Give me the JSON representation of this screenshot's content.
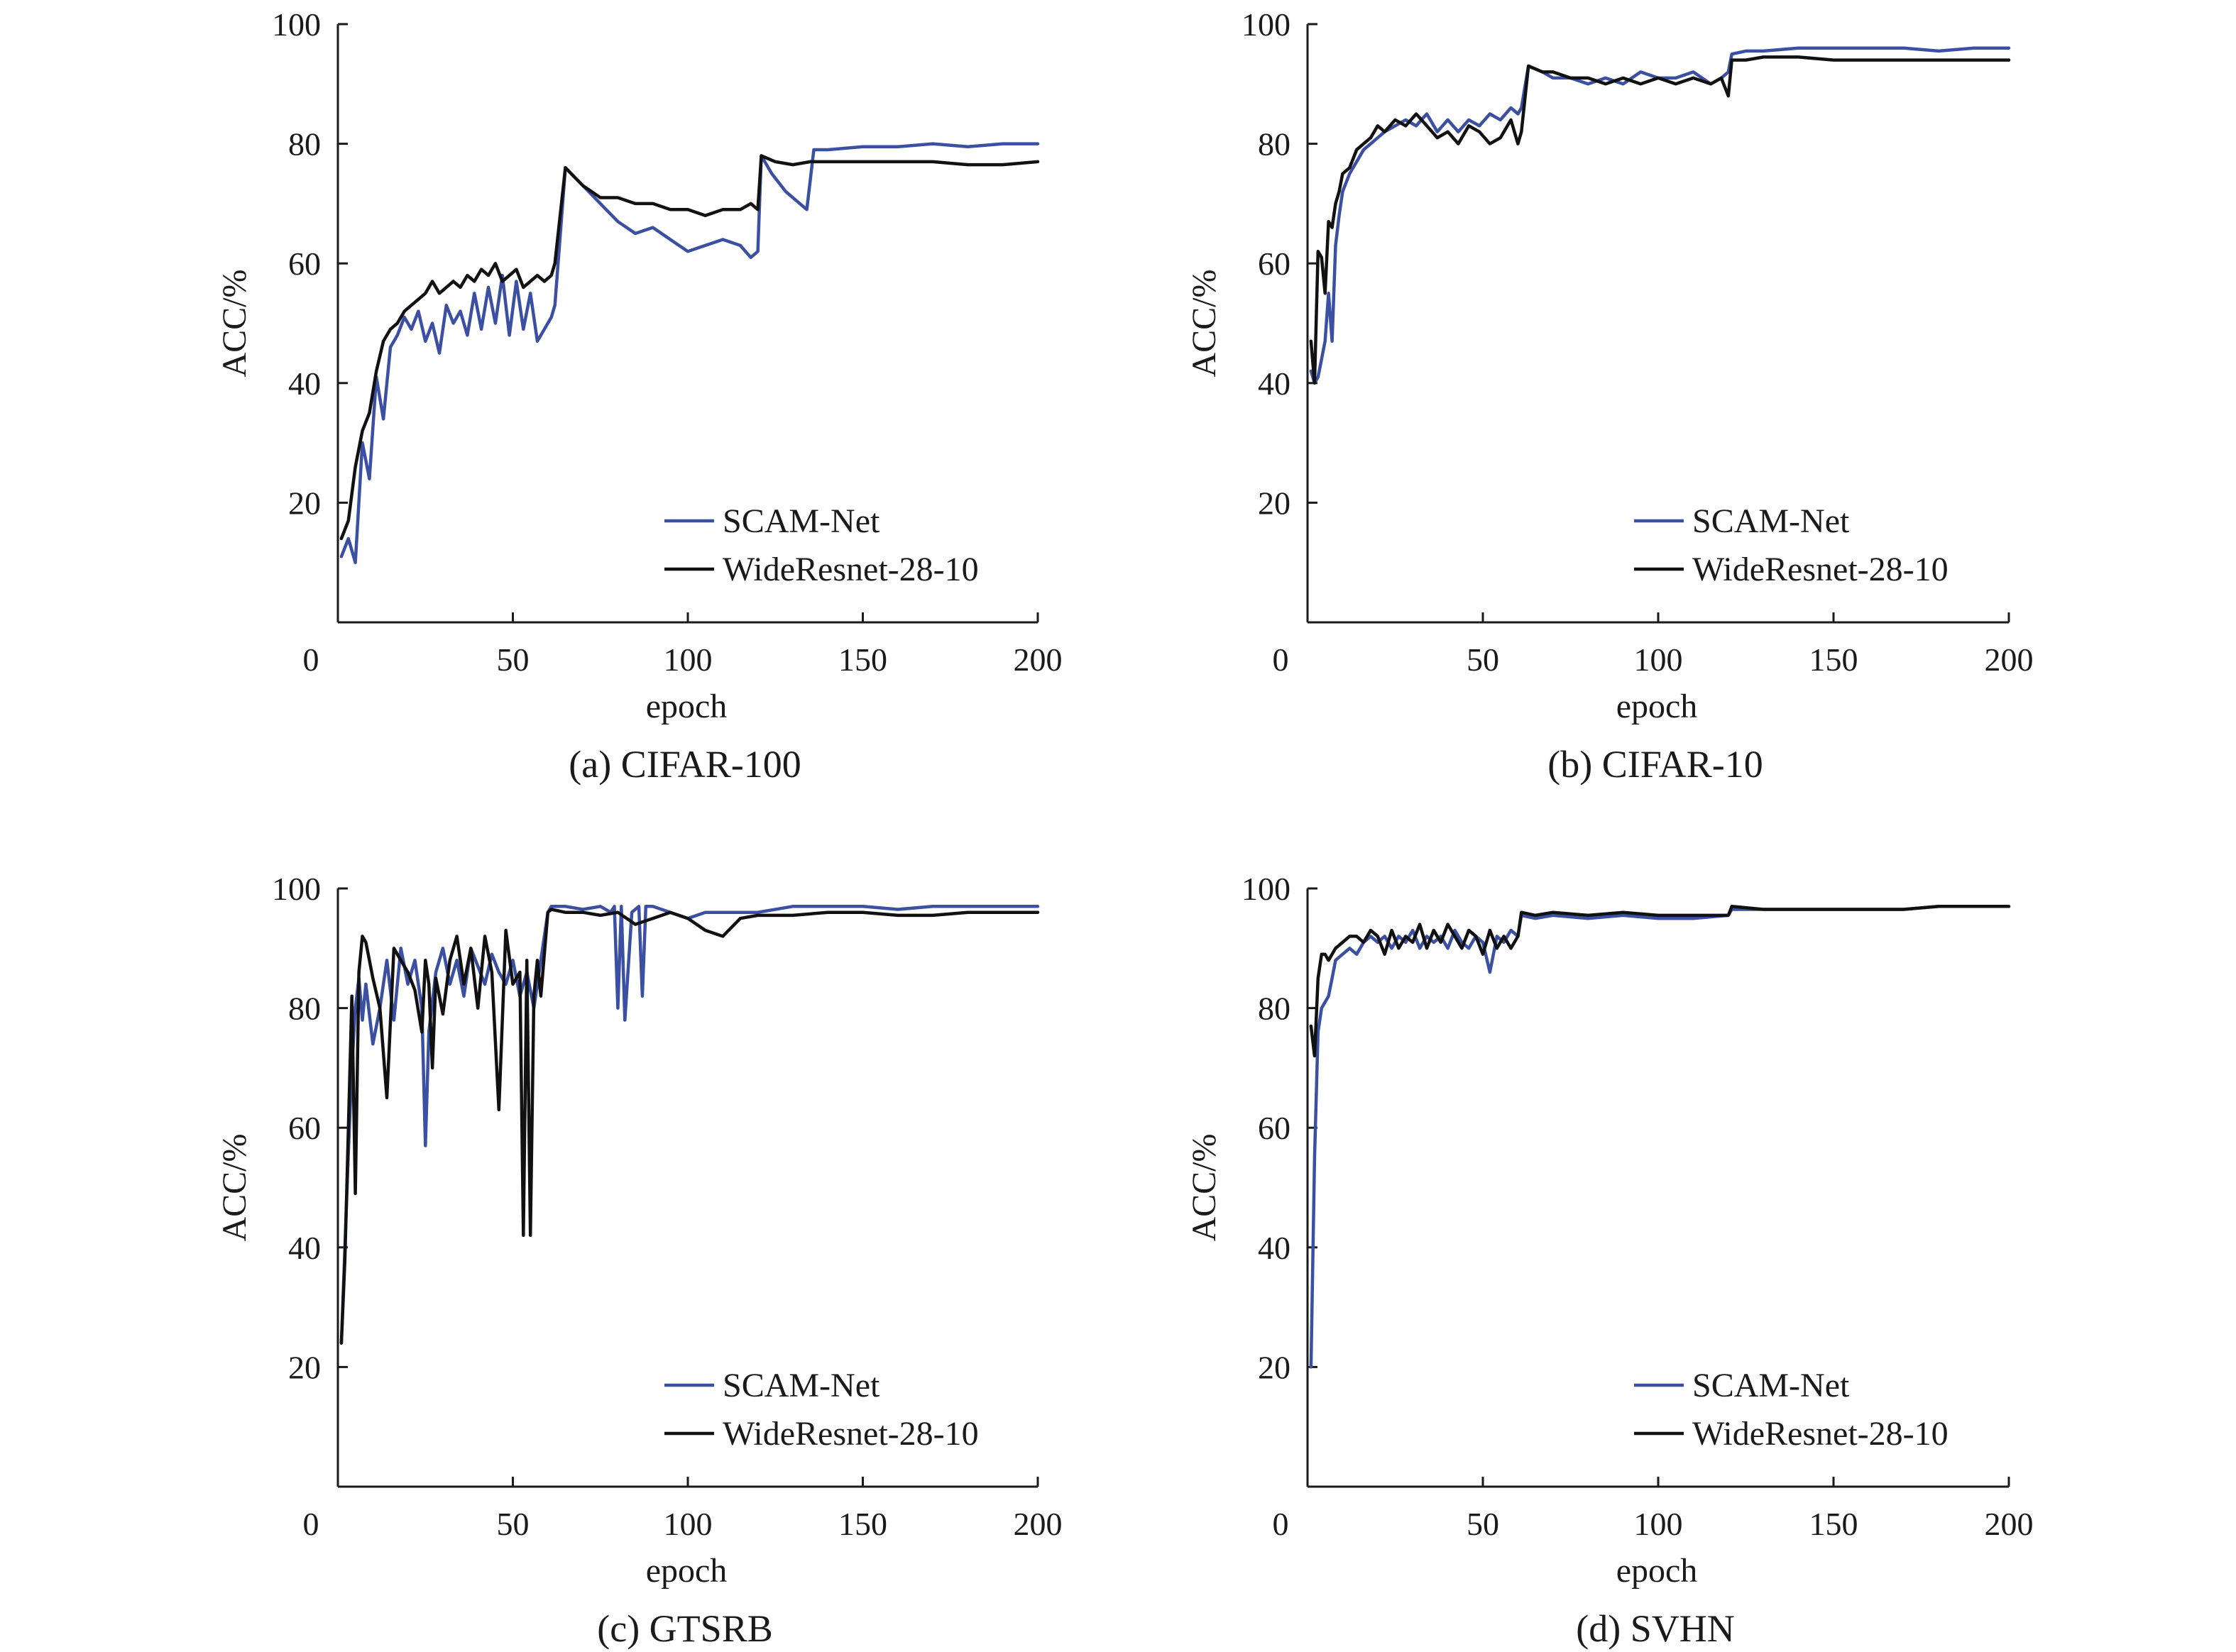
{
  "colors": {
    "scam": "#3b4fa3",
    "wide": "#111111",
    "axis": "#1a1a1a"
  },
  "chart_data": [
    {
      "type": "line",
      "title": "(a) CIFAR-100",
      "xlabel": "epoch",
      "ylabel": "ACC/%",
      "xlim": [
        0,
        200
      ],
      "ylim": [
        0,
        100
      ],
      "xticks": [
        "0",
        "50",
        "100",
        "150",
        "200"
      ],
      "yticks": [
        "20",
        "40",
        "60",
        "80",
        "100"
      ],
      "legend": "lower-right",
      "series": [
        {
          "name": "SCAM-Net",
          "x": [
            1,
            3,
            5,
            7,
            9,
            11,
            13,
            15,
            17,
            19,
            21,
            23,
            25,
            27,
            29,
            31,
            33,
            35,
            37,
            39,
            41,
            43,
            45,
            47,
            49,
            51,
            53,
            55,
            57,
            59,
            61,
            62,
            65,
            70,
            75,
            80,
            85,
            90,
            95,
            100,
            105,
            110,
            115,
            118,
            120,
            121,
            124,
            128,
            132,
            134,
            136,
            140,
            150,
            160,
            170,
            180,
            190,
            200
          ],
          "y": [
            11,
            14,
            10,
            30,
            24,
            41,
            34,
            46,
            48,
            51,
            49,
            52,
            47,
            50,
            45,
            53,
            50,
            52,
            48,
            55,
            49,
            56,
            50,
            58,
            48,
            57,
            49,
            55,
            47,
            49,
            51,
            53,
            76,
            73,
            70,
            67,
            65,
            66,
            64,
            62,
            63,
            64,
            63,
            61,
            62,
            78,
            75,
            72,
            70,
            69,
            79,
            79,
            79.5,
            79.5,
            80,
            79.5,
            80,
            80
          ]
        },
        {
          "name": "WideResnet-28-10",
          "x": [
            1,
            3,
            5,
            7,
            9,
            11,
            13,
            15,
            17,
            19,
            21,
            23,
            25,
            27,
            29,
            31,
            33,
            35,
            37,
            39,
            41,
            43,
            45,
            47,
            49,
            51,
            53,
            55,
            57,
            59,
            61,
            62,
            65,
            70,
            75,
            80,
            85,
            90,
            95,
            100,
            105,
            110,
            115,
            118,
            120,
            121,
            125,
            130,
            135,
            140,
            150,
            160,
            170,
            180,
            190,
            200
          ],
          "y": [
            14,
            17,
            26,
            32,
            35,
            42,
            47,
            49,
            50,
            52,
            53,
            54,
            55,
            57,
            55,
            56,
            57,
            56,
            58,
            57,
            59,
            58,
            60,
            57,
            58,
            59,
            56,
            57,
            58,
            57,
            58,
            60,
            76,
            73,
            71,
            71,
            70,
            70,
            69,
            69,
            68,
            69,
            69,
            70,
            69,
            78,
            77,
            76.5,
            77,
            77,
            77,
            77,
            77,
            76.5,
            76.5,
            77
          ]
        }
      ]
    },
    {
      "type": "line",
      "title": "(b) CIFAR-10",
      "xlabel": "epoch",
      "ylabel": "ACC/%",
      "xlim": [
        0,
        200
      ],
      "ylim": [
        0,
        100
      ],
      "xticks": [
        "0",
        "50",
        "100",
        "150",
        "200"
      ],
      "yticks": [
        "20",
        "40",
        "60",
        "80",
        "100"
      ],
      "legend": "lower-right",
      "series": [
        {
          "name": "SCAM-Net",
          "x": [
            1,
            2,
            3,
            4,
            5,
            6,
            7,
            8,
            9,
            10,
            12,
            14,
            16,
            18,
            20,
            22,
            25,
            28,
            31,
            34,
            37,
            40,
            43,
            46,
            49,
            52,
            55,
            58,
            60,
            61,
            63,
            67,
            70,
            75,
            80,
            85,
            90,
            95,
            100,
            105,
            110,
            115,
            118,
            120,
            121,
            125,
            130,
            140,
            150,
            160,
            170,
            180,
            190,
            200
          ],
          "y": [
            42,
            40,
            41,
            44,
            47,
            55,
            47,
            63,
            68,
            72,
            75,
            77,
            79,
            80,
            81,
            82,
            83,
            84,
            83,
            85,
            82,
            84,
            82,
            84,
            83,
            85,
            84,
            86,
            85,
            86,
            93,
            92,
            91,
            91,
            90,
            91,
            90,
            92,
            91,
            91,
            92,
            90,
            91,
            92,
            95,
            95.5,
            95.5,
            96,
            96,
            96,
            96,
            95.5,
            96,
            96
          ]
        },
        {
          "name": "WideResnet-28-10",
          "x": [
            1,
            2,
            3,
            4,
            5,
            6,
            7,
            8,
            9,
            10,
            12,
            14,
            16,
            18,
            20,
            22,
            25,
            28,
            31,
            34,
            37,
            40,
            43,
            46,
            49,
            52,
            55,
            58,
            60,
            61,
            63,
            67,
            70,
            75,
            80,
            85,
            90,
            95,
            100,
            105,
            110,
            115,
            118,
            120,
            121,
            125,
            130,
            140,
            150,
            160,
            170,
            180,
            190,
            200
          ],
          "y": [
            47,
            40,
            62,
            61,
            55,
            67,
            66,
            70,
            72,
            75,
            76,
            79,
            80,
            81,
            83,
            82,
            84,
            83,
            85,
            83,
            81,
            82,
            80,
            83,
            82,
            80,
            81,
            84,
            80,
            82,
            93,
            92,
            92,
            91,
            91,
            90,
            91,
            90,
            91,
            90,
            91,
            90,
            91,
            88,
            94,
            94,
            94.5,
            94.5,
            94,
            94,
            94,
            94,
            94,
            94
          ]
        }
      ]
    },
    {
      "type": "line",
      "title": "(c) GTSRB",
      "xlabel": "epoch",
      "ylabel": "ACC/%",
      "xlim": [
        0,
        200
      ],
      "ylim": [
        0,
        100
      ],
      "xticks": [
        "0",
        "50",
        "100",
        "150",
        "200"
      ],
      "yticks": [
        "20",
        "40",
        "60",
        "80",
        "100"
      ],
      "legend": "lower-right",
      "series": [
        {
          "name": "SCAM-Net",
          "x": [
            1,
            2,
            3,
            4,
            5,
            6,
            7,
            8,
            10,
            12,
            14,
            16,
            18,
            20,
            22,
            24,
            25,
            26,
            28,
            30,
            32,
            34,
            36,
            38,
            40,
            42,
            44,
            46,
            48,
            50,
            52,
            54,
            56,
            58,
            60,
            61,
            65,
            70,
            75,
            78,
            79,
            80,
            81,
            82,
            84,
            86,
            87,
            88,
            90,
            95,
            100,
            105,
            110,
            120,
            130,
            140,
            150,
            160,
            170,
            180,
            190,
            200
          ],
          "y": [
            24,
            40,
            56,
            70,
            80,
            85,
            78,
            84,
            74,
            80,
            88,
            78,
            90,
            84,
            88,
            80,
            57,
            76,
            86,
            90,
            84,
            88,
            82,
            90,
            87,
            84,
            89,
            86,
            84,
            88,
            82,
            86,
            80,
            88,
            96,
            97,
            97,
            96.5,
            97,
            96,
            97,
            80,
            97,
            78,
            96,
            97,
            82,
            97,
            97,
            96,
            95,
            96,
            96,
            96,
            97,
            97,
            97,
            96.5,
            97,
            97,
            97,
            97
          ]
        },
        {
          "name": "WideResnet-28-10",
          "x": [
            1,
            2,
            3,
            4,
            5,
            6,
            7,
            8,
            9,
            10,
            12,
            14,
            16,
            18,
            20,
            22,
            24,
            25,
            26,
            27,
            28,
            30,
            32,
            34,
            36,
            38,
            40,
            42,
            44,
            46,
            48,
            50,
            52,
            53,
            54,
            55,
            56,
            57,
            58,
            60,
            61,
            65,
            70,
            75,
            80,
            85,
            90,
            95,
            100,
            105,
            110,
            115,
            120,
            130,
            140,
            150,
            160,
            170,
            180,
            190,
            200
          ],
          "y": [
            24,
            38,
            60,
            82,
            49,
            86,
            92,
            91,
            88,
            85,
            80,
            65,
            90,
            88,
            86,
            83,
            76,
            88,
            84,
            70,
            85,
            79,
            88,
            92,
            84,
            90,
            80,
            92,
            86,
            63,
            93,
            84,
            86,
            42,
            88,
            42,
            82,
            88,
            82,
            96,
            96.5,
            96,
            96,
            95.5,
            96,
            94,
            95,
            96,
            95,
            93,
            92,
            95,
            95.5,
            95.5,
            96,
            96,
            95.5,
            95.5,
            96,
            96,
            96
          ]
        }
      ]
    },
    {
      "type": "line",
      "title": "(d) SVHN",
      "xlabel": "epoch",
      "ylabel": "ACC/%",
      "xlim": [
        0,
        200
      ],
      "ylim": [
        0,
        100
      ],
      "xticks": [
        "0",
        "50",
        "100",
        "150",
        "200"
      ],
      "yticks": [
        "20",
        "40",
        "60",
        "80",
        "100"
      ],
      "legend": "lower-right",
      "series": [
        {
          "name": "SCAM-Net",
          "x": [
            1,
            2,
            3,
            4,
            5,
            6,
            7,
            8,
            10,
            12,
            14,
            16,
            18,
            20,
            22,
            24,
            26,
            28,
            30,
            32,
            34,
            36,
            38,
            40,
            42,
            44,
            46,
            48,
            50,
            52,
            54,
            56,
            58,
            60,
            61,
            65,
            70,
            80,
            90,
            100,
            110,
            120,
            121,
            130,
            140,
            150,
            160,
            170,
            180,
            190,
            200
          ],
          "y": [
            20,
            55,
            76,
            80,
            81,
            82,
            85,
            88,
            89,
            90,
            89,
            91,
            92,
            91,
            92,
            90,
            92,
            91,
            93,
            90,
            92,
            91,
            92,
            90,
            93,
            91,
            90,
            92,
            91,
            86,
            92,
            91,
            93,
            92,
            95.5,
            95,
            95.5,
            95,
            95.5,
            95,
            95,
            95.5,
            96.5,
            96.5,
            96.5,
            96.5,
            96.5,
            96.5,
            97,
            97,
            97
          ]
        },
        {
          "name": "WideResnet-28-10",
          "x": [
            1,
            2,
            3,
            4,
            5,
            6,
            8,
            10,
            12,
            14,
            16,
            18,
            20,
            22,
            24,
            26,
            28,
            30,
            32,
            34,
            36,
            38,
            40,
            42,
            44,
            46,
            48,
            50,
            52,
            54,
            56,
            58,
            60,
            61,
            65,
            70,
            80,
            90,
            100,
            110,
            120,
            121,
            130,
            140,
            150,
            160,
            170,
            180,
            190,
            200
          ],
          "y": [
            77,
            72,
            85,
            89,
            89,
            88,
            90,
            91,
            92,
            92,
            91,
            93,
            92,
            89,
            93,
            90,
            92,
            91,
            94,
            90,
            93,
            91,
            94,
            92,
            90,
            93,
            92,
            89,
            93,
            90,
            92,
            90,
            92,
            96,
            95.5,
            96,
            95.5,
            96,
            95.5,
            95.5,
            95.5,
            97,
            96.5,
            96.5,
            96.5,
            96.5,
            96.5,
            97,
            97,
            97
          ]
        }
      ]
    }
  ]
}
